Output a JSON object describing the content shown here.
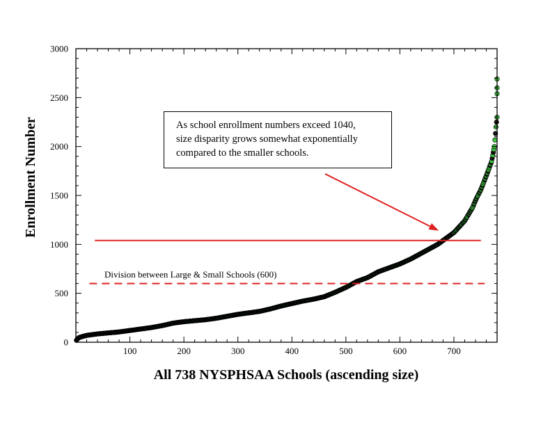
{
  "chart_data": {
    "type": "scatter",
    "xlabel": "All 738 NYSPHSAA Schools (ascending size)",
    "ylabel": "Enrollment Number",
    "xlim": [
      0,
      780
    ],
    "ylim": [
      0,
      3000
    ],
    "x_ticks": [
      100,
      200,
      300,
      400,
      500,
      600,
      700
    ],
    "y_ticks": [
      0,
      500,
      1000,
      1500,
      2000,
      2500,
      3000
    ],
    "marker_colors": {
      "small_schools": "#111111",
      "large_schools": "#3ec43e",
      "marker_edge": "#000000"
    },
    "enrollment_curve": [
      [
        1,
        20
      ],
      [
        5,
        45
      ],
      [
        10,
        55
      ],
      [
        20,
        70
      ],
      [
        40,
        85
      ],
      [
        60,
        95
      ],
      [
        80,
        105
      ],
      [
        100,
        120
      ],
      [
        120,
        135
      ],
      [
        140,
        150
      ],
      [
        160,
        170
      ],
      [
        180,
        195
      ],
      [
        200,
        210
      ],
      [
        220,
        220
      ],
      [
        240,
        230
      ],
      [
        260,
        245
      ],
      [
        280,
        265
      ],
      [
        300,
        285
      ],
      [
        320,
        300
      ],
      [
        340,
        315
      ],
      [
        360,
        340
      ],
      [
        380,
        370
      ],
      [
        400,
        395
      ],
      [
        420,
        420
      ],
      [
        440,
        440
      ],
      [
        460,
        465
      ],
      [
        480,
        510
      ],
      [
        500,
        560
      ],
      [
        510,
        590
      ],
      [
        520,
        620
      ],
      [
        540,
        660
      ],
      [
        560,
        720
      ],
      [
        580,
        760
      ],
      [
        600,
        800
      ],
      [
        620,
        850
      ],
      [
        640,
        910
      ],
      [
        660,
        970
      ],
      [
        670,
        1000
      ],
      [
        680,
        1040
      ],
      [
        700,
        1120
      ],
      [
        720,
        1240
      ],
      [
        735,
        1380
      ],
      [
        740,
        1450
      ],
      [
        750,
        1560
      ],
      [
        760,
        1700
      ],
      [
        770,
        1850
      ],
      [
        775,
        2000
      ],
      [
        778,
        2200
      ],
      [
        780,
        2300
      ]
    ],
    "outliers": [
      {
        "x": 780,
        "y": 2540
      },
      {
        "x": 780,
        "y": 2600
      },
      {
        "x": 780,
        "y": 2690
      }
    ],
    "reference_lines": [
      {
        "y": 1040,
        "x_start": 35,
        "x_end": 750,
        "style": "solid",
        "color": "#e02020"
      },
      {
        "y": 600,
        "x_start": 25,
        "x_end": 757,
        "style": "dashed",
        "color": "#e02020",
        "label": "Division between Large & Small Schools (600)"
      }
    ],
    "annotation": {
      "lines": [
        "As school enrollment numbers exceed 1040,",
        "size disparity grows somewhat exponentially",
        "compared to the smaller schools."
      ],
      "arrow_to": {
        "x": 672,
        "y": 1140
      },
      "arrow_color": "#e02020"
    }
  }
}
